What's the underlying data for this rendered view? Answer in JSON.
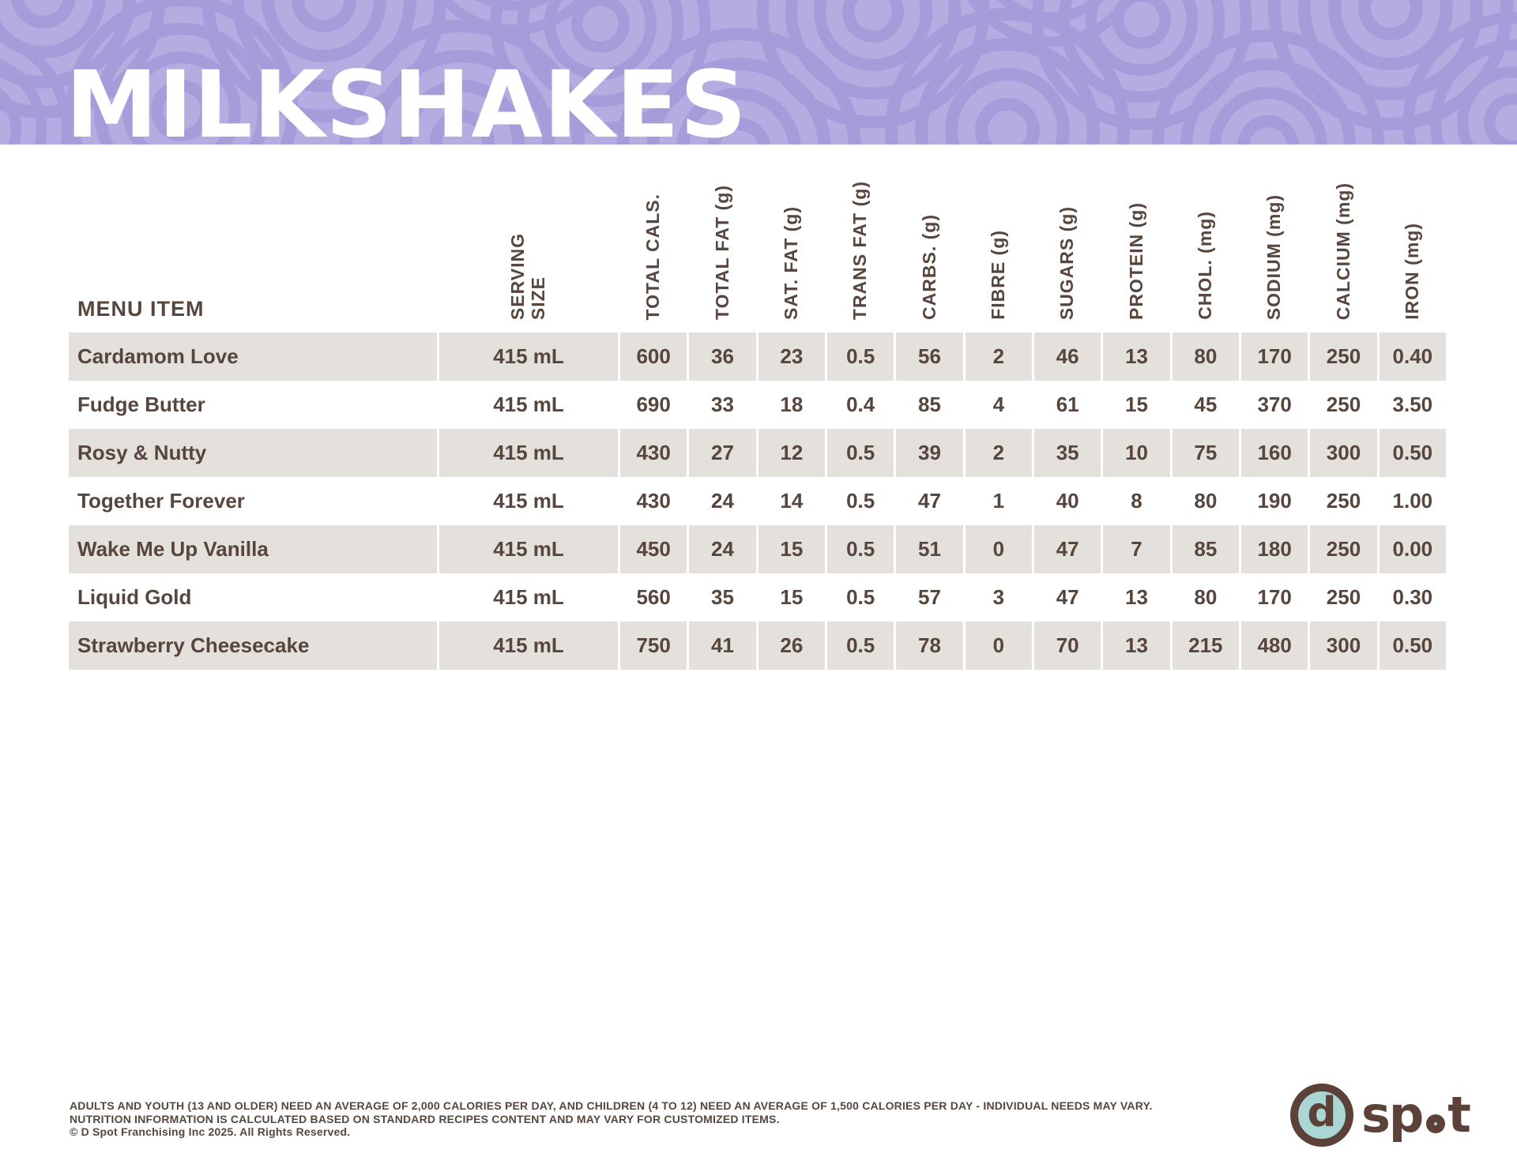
{
  "page": {
    "title": "MILKSHAKES"
  },
  "theme": {
    "header_bg": "#b5ace2",
    "header_ring": "#a89bd9",
    "text_brown": "#56463d",
    "row_shade": "#e4e0db",
    "logo_brown": "#5b4138",
    "logo_teal": "#aad6d4",
    "title_color": "#ffffff"
  },
  "table": {
    "menu_item_header": "MENU ITEM",
    "columns": [
      "SERVING\nSIZE",
      "TOTAL CALS.",
      "TOTAL FAT (g)",
      "SAT. FAT (g)",
      "TRANS FAT (g)",
      "CARBS. (g)",
      "FIBRE (g)",
      "SUGARS (g)",
      "PROTEIN (g)",
      "CHOL. (mg)",
      "SODIUM (mg)",
      "CALCIUM (mg)",
      "IRON (mg)"
    ],
    "rows": [
      {
        "name": "Cardamom Love",
        "values": [
          "415 mL",
          "600",
          "36",
          "23",
          "0.5",
          "56",
          "2",
          "46",
          "13",
          "80",
          "170",
          "250",
          "0.40"
        ]
      },
      {
        "name": "Fudge Butter",
        "values": [
          "415 mL",
          "690",
          "33",
          "18",
          "0.4",
          "85",
          "4",
          "61",
          "15",
          "45",
          "370",
          "250",
          "3.50"
        ]
      },
      {
        "name": "Rosy & Nutty",
        "values": [
          "415 mL",
          "430",
          "27",
          "12",
          "0.5",
          "39",
          "2",
          "35",
          "10",
          "75",
          "160",
          "300",
          "0.50"
        ]
      },
      {
        "name": "Together Forever",
        "values": [
          "415 mL",
          "430",
          "24",
          "14",
          "0.5",
          "47",
          "1",
          "40",
          "8",
          "80",
          "190",
          "250",
          "1.00"
        ]
      },
      {
        "name": "Wake Me Up Vanilla",
        "values": [
          "415 mL",
          "450",
          "24",
          "15",
          "0.5",
          "51",
          "0",
          "47",
          "7",
          "85",
          "180",
          "250",
          "0.00"
        ]
      },
      {
        "name": "Liquid Gold",
        "values": [
          "415 mL",
          "560",
          "35",
          "15",
          "0.5",
          "57",
          "3",
          "47",
          "13",
          "80",
          "170",
          "250",
          "0.30"
        ]
      },
      {
        "name": "Strawberry Cheesecake",
        "values": [
          "415 mL",
          "750",
          "41",
          "26",
          "0.5",
          "78",
          "0",
          "70",
          "13",
          "215",
          "480",
          "300",
          "0.50"
        ]
      }
    ]
  },
  "footer": {
    "note1": "ADULTS AND YOUTH (13 AND OLDER) NEED AN AVERAGE OF 2,000 CALORIES PER DAY, AND CHILDREN (4 TO 12) NEED AN AVERAGE OF 1,500 CALORIES PER DAY - INDIVIDUAL NEEDS MAY VARY.",
    "note2": "NUTRITION INFORMATION IS CALCULATED BASED ON STANDARD RECIPES CONTENT AND MAY VARY FOR CUSTOMIZED ITEMS.",
    "copyright": "© D Spot Franchising Inc 2025. All Rights Reserved.",
    "logo": {
      "d_letter": "d",
      "word_start": "sp",
      "word_end": "t"
    }
  }
}
